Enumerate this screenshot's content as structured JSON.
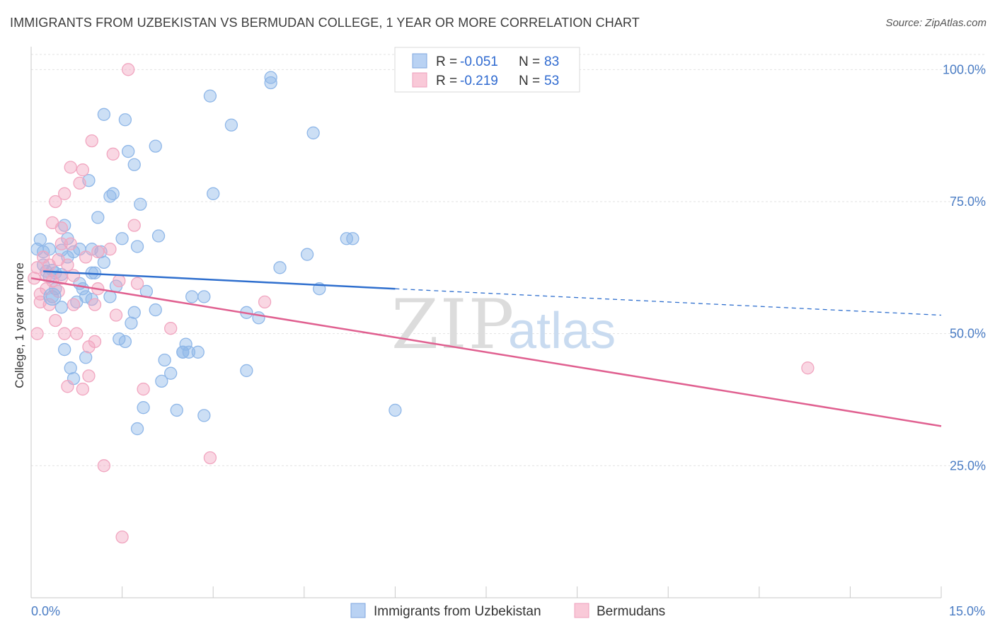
{
  "title": "IMMIGRANTS FROM UZBEKISTAN VS BERMUDAN COLLEGE, 1 YEAR OR MORE CORRELATION CHART",
  "source": "Source: ZipAtlas.com",
  "watermark": {
    "zip": "ZIP",
    "atlas": "atlas"
  },
  "chart_data": {
    "type": "scatter",
    "xlabel": "",
    "ylabel": "College, 1 year or more",
    "xlim": [
      0,
      15
    ],
    "ylim": [
      0,
      105
    ],
    "x_ticks": [
      {
        "value": 0,
        "label": "0.0%"
      },
      {
        "value": 15,
        "label": "15.0%"
      }
    ],
    "y_ticks": [
      {
        "value": 100,
        "label": "100.0%"
      },
      {
        "value": 75,
        "label": "75.0%"
      },
      {
        "value": 50,
        "label": "50.0%"
      },
      {
        "value": 25,
        "label": "25.0%"
      }
    ],
    "grid": true,
    "legend_position": "top-center",
    "series": [
      {
        "name": "Immigrants from Uzbekistan",
        "color": "#8fb7e8",
        "line_color": "#2f6fce",
        "R": "-0.051",
        "N": "83",
        "trend": {
          "x0": 0.2,
          "y0": 61.8,
          "x1": 6.0,
          "y1": 58.5,
          "dash_x1": 15.0,
          "dash_y1": 53.5
        },
        "points": [
          [
            0.1,
            66.0
          ],
          [
            0.15,
            67.8
          ],
          [
            0.2,
            65.5
          ],
          [
            0.2,
            63.0
          ],
          [
            0.25,
            61.8
          ],
          [
            0.3,
            60.8
          ],
          [
            0.35,
            57.0
          ],
          [
            0.35,
            62.0
          ],
          [
            0.4,
            58.5
          ],
          [
            0.5,
            55.0
          ],
          [
            0.5,
            65.8
          ],
          [
            0.5,
            61.2
          ],
          [
            0.55,
            47.0
          ],
          [
            0.55,
            70.5
          ],
          [
            0.6,
            64.5
          ],
          [
            0.6,
            68.0
          ],
          [
            0.65,
            43.5
          ],
          [
            0.7,
            41.5
          ],
          [
            0.75,
            56.0
          ],
          [
            0.8,
            59.5
          ],
          [
            0.8,
            66.0
          ],
          [
            0.85,
            58.5
          ],
          [
            0.9,
            57.0
          ],
          [
            0.9,
            45.5
          ],
          [
            0.95,
            79.0
          ],
          [
            1.0,
            66.0
          ],
          [
            1.0,
            56.5
          ],
          [
            1.05,
            61.5
          ],
          [
            1.1,
            72.0
          ],
          [
            1.15,
            65.5
          ],
          [
            1.2,
            91.5
          ],
          [
            1.2,
            63.5
          ],
          [
            1.3,
            76.0
          ],
          [
            1.3,
            57.0
          ],
          [
            1.35,
            76.5
          ],
          [
            1.4,
            59.0
          ],
          [
            1.45,
            49.0
          ],
          [
            1.5,
            68.0
          ],
          [
            1.55,
            90.5
          ],
          [
            1.55,
            48.5
          ],
          [
            1.6,
            84.5
          ],
          [
            1.65,
            52.0
          ],
          [
            1.7,
            82.0
          ],
          [
            1.75,
            32.0
          ],
          [
            1.75,
            66.5
          ],
          [
            1.8,
            74.5
          ],
          [
            1.85,
            36.0
          ],
          [
            1.9,
            58.0
          ],
          [
            2.05,
            85.5
          ],
          [
            2.05,
            54.5
          ],
          [
            2.1,
            68.5
          ],
          [
            2.15,
            41.0
          ],
          [
            2.2,
            45.0
          ],
          [
            2.3,
            42.5
          ],
          [
            2.4,
            35.5
          ],
          [
            2.5,
            46.5
          ],
          [
            2.5,
            46.5
          ],
          [
            2.55,
            48.0
          ],
          [
            2.6,
            46.5
          ],
          [
            2.65,
            57.0
          ],
          [
            2.75,
            46.5
          ],
          [
            2.85,
            34.5
          ],
          [
            2.85,
            57.0
          ],
          [
            2.95,
            95.0
          ],
          [
            3.0,
            76.5
          ],
          [
            3.3,
            89.5
          ],
          [
            3.55,
            43.0
          ],
          [
            3.55,
            54.0
          ],
          [
            3.75,
            53.0
          ],
          [
            3.95,
            97.5
          ],
          [
            3.95,
            98.5
          ],
          [
            4.1,
            62.5
          ],
          [
            4.55,
            65.0
          ],
          [
            4.65,
            88.0
          ],
          [
            4.75,
            58.5
          ],
          [
            5.2,
            68.0
          ],
          [
            5.3,
            68.0
          ],
          [
            6.0,
            35.5
          ],
          [
            0.3,
            66.0
          ],
          [
            0.4,
            61.5
          ],
          [
            0.7,
            65.5
          ],
          [
            1.0,
            61.5
          ],
          [
            1.7,
            54.0
          ]
        ]
      },
      {
        "name": "Bermudans",
        "color": "#f1a6c0",
        "line_color": "#e06090",
        "R": "-0.219",
        "N": "53",
        "trend": {
          "x0": 0.0,
          "y0": 60.5,
          "x1": 15.0,
          "y1": 32.5
        },
        "points": [
          [
            0.05,
            60.5
          ],
          [
            0.1,
            62.5
          ],
          [
            0.1,
            50.0
          ],
          [
            0.15,
            56.0
          ],
          [
            0.2,
            64.5
          ],
          [
            0.25,
            61.0
          ],
          [
            0.25,
            58.5
          ],
          [
            0.3,
            55.5
          ],
          [
            0.3,
            63.0
          ],
          [
            0.35,
            71.0
          ],
          [
            0.35,
            60.0
          ],
          [
            0.4,
            75.0
          ],
          [
            0.45,
            64.0
          ],
          [
            0.45,
            58.0
          ],
          [
            0.5,
            67.0
          ],
          [
            0.5,
            70.0
          ],
          [
            0.5,
            60.5
          ],
          [
            0.55,
            76.5
          ],
          [
            0.55,
            50.0
          ],
          [
            0.6,
            40.0
          ],
          [
            0.6,
            63.0
          ],
          [
            0.65,
            67.0
          ],
          [
            0.65,
            81.5
          ],
          [
            0.7,
            61.0
          ],
          [
            0.7,
            55.5
          ],
          [
            0.75,
            50.0
          ],
          [
            0.8,
            78.5
          ],
          [
            0.85,
            39.5
          ],
          [
            0.85,
            81.0
          ],
          [
            0.9,
            64.5
          ],
          [
            0.95,
            47.5
          ],
          [
            0.95,
            42.0
          ],
          [
            1.0,
            86.5
          ],
          [
            1.05,
            55.5
          ],
          [
            1.05,
            48.5
          ],
          [
            1.1,
            65.5
          ],
          [
            1.1,
            58.5
          ],
          [
            1.2,
            25.0
          ],
          [
            1.3,
            66.0
          ],
          [
            1.35,
            84.0
          ],
          [
            1.4,
            53.5
          ],
          [
            1.45,
            60.0
          ],
          [
            1.5,
            11.5
          ],
          [
            1.6,
            100.0
          ],
          [
            1.7,
            70.5
          ],
          [
            1.75,
            59.5
          ],
          [
            1.85,
            39.5
          ],
          [
            2.3,
            51.0
          ],
          [
            2.95,
            26.5
          ],
          [
            3.85,
            56.0
          ],
          [
            12.8,
            43.5
          ],
          [
            0.15,
            57.5
          ],
          [
            0.4,
            52.5
          ]
        ]
      }
    ]
  }
}
